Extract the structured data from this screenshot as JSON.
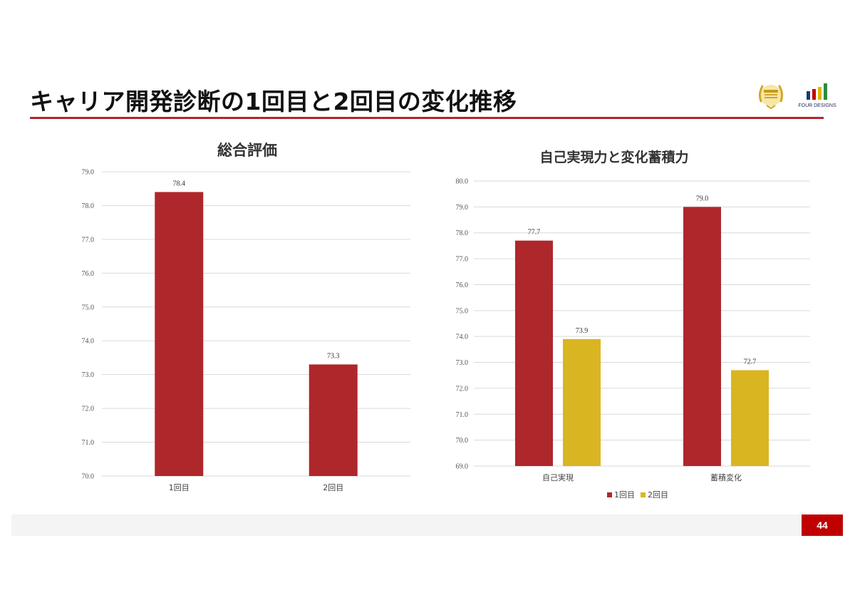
{
  "slide": {
    "title": "キャリア開発診断の1回目と2回目の変化推移",
    "page_number": "44",
    "brand_name": "FOUR DESIGNS",
    "award_logo": "laurel-badge-icon",
    "colors": {
      "accent": "#b0262a",
      "series1": "#ae272b",
      "series2": "#dab522",
      "page_badge": "#c00000"
    }
  },
  "chart_data": [
    {
      "type": "bar",
      "title": "総合評価",
      "categories": [
        "1回目",
        "2回目"
      ],
      "values": [
        78.4,
        73.3
      ],
      "data_labels": [
        "78.4",
        "73.3"
      ],
      "ylim": [
        70.0,
        79.0
      ],
      "yticks": [
        "70.0",
        "71.0",
        "72.0",
        "73.0",
        "74.0",
        "75.0",
        "76.0",
        "77.0",
        "78.0",
        "79.0"
      ],
      "xlabel": "",
      "ylabel": "",
      "grid": true,
      "legend": "none"
    },
    {
      "type": "bar",
      "title": "自己実現力と変化蓄積力",
      "categories": [
        "自己実現",
        "蓄積変化"
      ],
      "series": [
        {
          "name": "1回目",
          "values": [
            77.7,
            79.0
          ],
          "data_labels": [
            "77.7",
            "79.0"
          ]
        },
        {
          "name": "2回目",
          "values": [
            73.9,
            72.7
          ],
          "data_labels": [
            "73.9",
            "72.7"
          ]
        }
      ],
      "ylim": [
        69.0,
        80.0
      ],
      "yticks": [
        "69.0",
        "70.0",
        "71.0",
        "72.0",
        "73.0",
        "74.0",
        "75.0",
        "76.0",
        "77.0",
        "78.0",
        "79.0",
        "80.0"
      ],
      "xlabel": "",
      "ylabel": "",
      "grid": true,
      "legend": "bottom"
    }
  ]
}
